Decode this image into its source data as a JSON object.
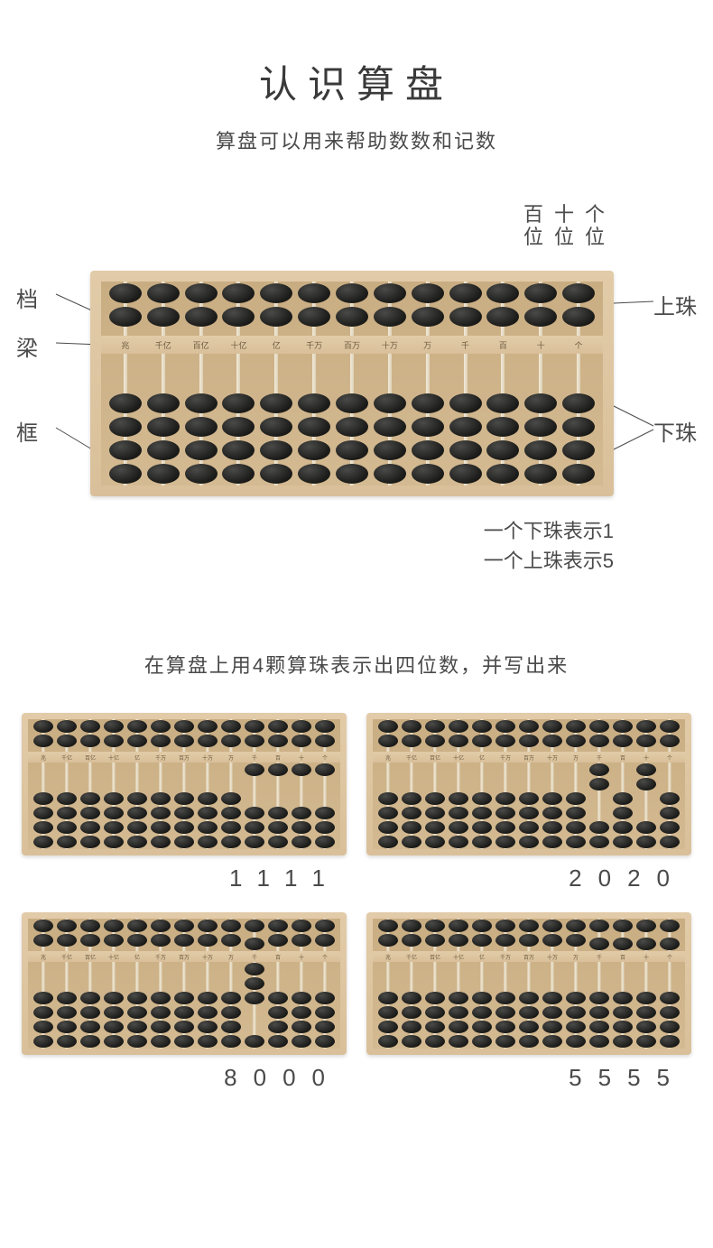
{
  "title": "认识算盘",
  "subtitle": "算盘可以用来帮助数数和记数",
  "place_labels": [
    "百位",
    "十位",
    "个位"
  ],
  "part_labels": {
    "rod": "档",
    "beam": "梁",
    "frame": "框",
    "upper_bead": "上珠",
    "lower_bead": "下珠"
  },
  "notes": {
    "line1": "一个下珠表示1",
    "line2": "一个上珠表示5"
  },
  "exercise_title": "在算盘上用4颗算珠表示出四位数，并写出来",
  "column_labels": [
    "兆",
    "千亿",
    "百亿",
    "十亿",
    "亿",
    "千万",
    "百万",
    "十万",
    "万",
    "千",
    "百",
    "十",
    "个"
  ],
  "main_abacus": {
    "rods": [
      {
        "upper_up": 0,
        "lower_up": 0
      },
      {
        "upper_up": 0,
        "lower_up": 0
      },
      {
        "upper_up": 0,
        "lower_up": 0
      },
      {
        "upper_up": 0,
        "lower_up": 0
      },
      {
        "upper_up": 0,
        "lower_up": 0
      },
      {
        "upper_up": 0,
        "lower_up": 0
      },
      {
        "upper_up": 0,
        "lower_up": 0
      },
      {
        "upper_up": 0,
        "lower_up": 0
      },
      {
        "upper_up": 0,
        "lower_up": 0
      },
      {
        "upper_up": 0,
        "lower_up": 0
      },
      {
        "upper_up": 0,
        "lower_up": 0
      },
      {
        "upper_up": 0,
        "lower_up": 0
      },
      {
        "upper_up": 0,
        "lower_up": 0
      }
    ]
  },
  "examples": [
    {
      "answer": "1111",
      "rods": [
        {
          "upper_up": 0,
          "lower_up": 0
        },
        {
          "upper_up": 0,
          "lower_up": 0
        },
        {
          "upper_up": 0,
          "lower_up": 0
        },
        {
          "upper_up": 0,
          "lower_up": 0
        },
        {
          "upper_up": 0,
          "lower_up": 0
        },
        {
          "upper_up": 0,
          "lower_up": 0
        },
        {
          "upper_up": 0,
          "lower_up": 0
        },
        {
          "upper_up": 0,
          "lower_up": 0
        },
        {
          "upper_up": 0,
          "lower_up": 0
        },
        {
          "upper_up": 0,
          "lower_up": 1
        },
        {
          "upper_up": 0,
          "lower_up": 1
        },
        {
          "upper_up": 0,
          "lower_up": 1
        },
        {
          "upper_up": 0,
          "lower_up": 1
        }
      ]
    },
    {
      "answer": "2020",
      "rods": [
        {
          "upper_up": 0,
          "lower_up": 0
        },
        {
          "upper_up": 0,
          "lower_up": 0
        },
        {
          "upper_up": 0,
          "lower_up": 0
        },
        {
          "upper_up": 0,
          "lower_up": 0
        },
        {
          "upper_up": 0,
          "lower_up": 0
        },
        {
          "upper_up": 0,
          "lower_up": 0
        },
        {
          "upper_up": 0,
          "lower_up": 0
        },
        {
          "upper_up": 0,
          "lower_up": 0
        },
        {
          "upper_up": 0,
          "lower_up": 0
        },
        {
          "upper_up": 0,
          "lower_up": 2
        },
        {
          "upper_up": 0,
          "lower_up": 0
        },
        {
          "upper_up": 0,
          "lower_up": 2
        },
        {
          "upper_up": 0,
          "lower_up": 0
        }
      ]
    },
    {
      "answer": "8000",
      "rods": [
        {
          "upper_up": 0,
          "lower_up": 0
        },
        {
          "upper_up": 0,
          "lower_up": 0
        },
        {
          "upper_up": 0,
          "lower_up": 0
        },
        {
          "upper_up": 0,
          "lower_up": 0
        },
        {
          "upper_up": 0,
          "lower_up": 0
        },
        {
          "upper_up": 0,
          "lower_up": 0
        },
        {
          "upper_up": 0,
          "lower_up": 0
        },
        {
          "upper_up": 0,
          "lower_up": 0
        },
        {
          "upper_up": 0,
          "lower_up": 0
        },
        {
          "upper_up": 1,
          "lower_up": 3
        },
        {
          "upper_up": 0,
          "lower_up": 0
        },
        {
          "upper_up": 0,
          "lower_up": 0
        },
        {
          "upper_up": 0,
          "lower_up": 0
        }
      ]
    },
    {
      "answer": "5555",
      "rods": [
        {
          "upper_up": 0,
          "lower_up": 0
        },
        {
          "upper_up": 0,
          "lower_up": 0
        },
        {
          "upper_up": 0,
          "lower_up": 0
        },
        {
          "upper_up": 0,
          "lower_up": 0
        },
        {
          "upper_up": 0,
          "lower_up": 0
        },
        {
          "upper_up": 0,
          "lower_up": 0
        },
        {
          "upper_up": 0,
          "lower_up": 0
        },
        {
          "upper_up": 0,
          "lower_up": 0
        },
        {
          "upper_up": 0,
          "lower_up": 0
        },
        {
          "upper_up": 1,
          "lower_up": 0
        },
        {
          "upper_up": 1,
          "lower_up": 0
        },
        {
          "upper_up": 1,
          "lower_up": 0
        },
        {
          "upper_up": 1,
          "lower_up": 0
        }
      ]
    }
  ],
  "colors": {
    "text": "#4a4a4a",
    "frame_light": "#e2cba8",
    "frame_dark": "#d9c09a",
    "bead": "#1a1a18",
    "background": "#ffffff"
  },
  "upper_bead_total": 2,
  "lower_bead_total": 4
}
